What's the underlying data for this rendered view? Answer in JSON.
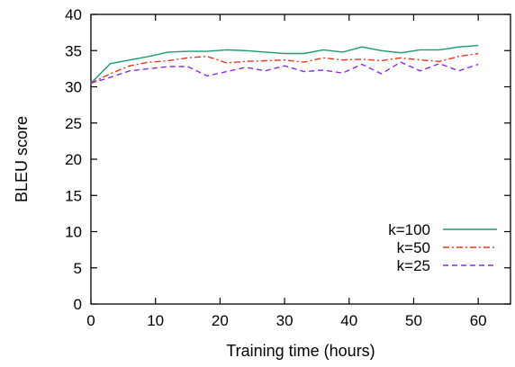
{
  "chart_data": {
    "type": "line",
    "xlabel": "Training time (hours)",
    "ylabel": "BLEU score",
    "xlim": [
      0,
      65
    ],
    "ylim": [
      0,
      40
    ],
    "xticks": [
      0,
      10,
      20,
      30,
      40,
      50,
      60
    ],
    "yticks": [
      0,
      5,
      10,
      15,
      20,
      25,
      30,
      35,
      40
    ],
    "legend_position": "bottom-right",
    "grid": false,
    "series": [
      {
        "name": "k=100",
        "color": "#1a9a6f",
        "dash": "solid",
        "x": [
          0,
          3,
          6,
          9,
          12,
          15,
          18,
          21,
          24,
          27,
          30,
          33,
          36,
          39,
          42,
          45,
          48,
          51,
          54,
          57,
          60
        ],
        "values": [
          30.5,
          33.2,
          33.7,
          34.2,
          34.8,
          34.9,
          34.9,
          35.1,
          35.0,
          34.8,
          34.6,
          34.6,
          35.1,
          34.8,
          35.5,
          35.0,
          34.7,
          35.1,
          35.1,
          35.5,
          35.7
        ]
      },
      {
        "name": "k=50",
        "color": "#e03a1e",
        "dash": "dashdot",
        "x": [
          0,
          3,
          6,
          9,
          12,
          15,
          18,
          21,
          24,
          27,
          30,
          33,
          36,
          39,
          42,
          45,
          48,
          51,
          54,
          57,
          60
        ],
        "values": [
          30.5,
          31.8,
          32.9,
          33.4,
          33.6,
          34.0,
          34.2,
          33.3,
          33.5,
          33.6,
          33.7,
          33.4,
          34.0,
          33.7,
          33.8,
          33.6,
          34.0,
          33.7,
          33.5,
          34.2,
          34.6
        ]
      },
      {
        "name": "k=25",
        "color": "#8a2be2",
        "dash": "dashed",
        "x": [
          0,
          3,
          6,
          9,
          12,
          15,
          18,
          21,
          24,
          27,
          30,
          33,
          36,
          39,
          42,
          45,
          48,
          51,
          54,
          57,
          60
        ],
        "values": [
          30.5,
          31.3,
          32.2,
          32.5,
          32.8,
          32.8,
          31.5,
          32.1,
          32.7,
          32.2,
          32.9,
          32.1,
          32.3,
          31.9,
          33.1,
          31.8,
          33.4,
          32.2,
          33.2,
          32.2,
          33.1
        ]
      }
    ]
  }
}
